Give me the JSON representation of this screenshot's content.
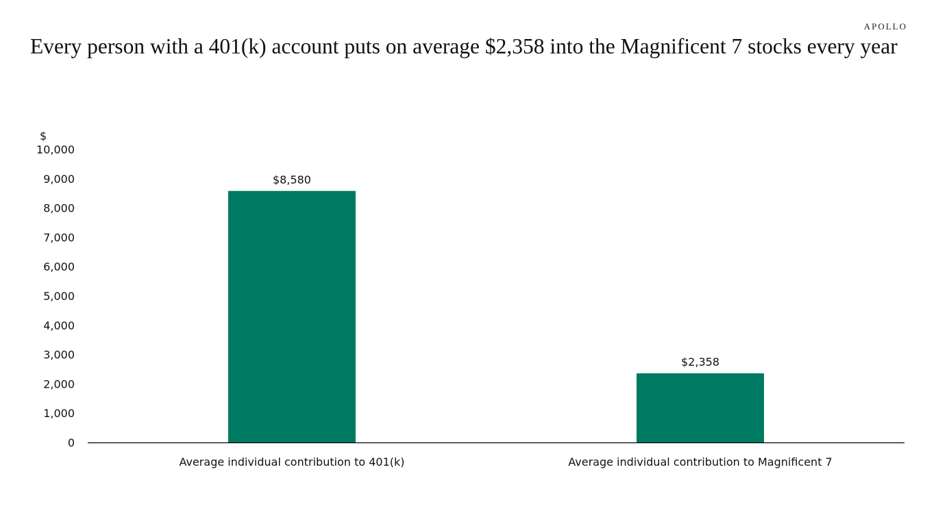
{
  "logo": "APOLLO",
  "title": "Every person with a 401(k) account puts on average $2,358 into the Magnificent 7 stocks every year",
  "chart_data": {
    "type": "bar",
    "title": "Every person with a 401(k) account puts on average $2,358 into the Magnificent 7 stocks every year",
    "categories": [
      "Average individual contribution to 401(k)",
      "Average individual contribution to Magnificent 7"
    ],
    "values": [
      8580,
      2358
    ],
    "data_labels": [
      "$8,580",
      "$2,358"
    ],
    "ylabel": "$",
    "xlabel": "",
    "ylim": [
      0,
      10000
    ],
    "yticks": [
      0,
      1000,
      2000,
      3000,
      4000,
      5000,
      6000,
      7000,
      8000,
      9000,
      10000
    ],
    "ytick_labels": [
      "0",
      "1,000",
      "2,000",
      "3,000",
      "4,000",
      "5,000",
      "6,000",
      "7,000",
      "8,000",
      "9,000",
      "10,000"
    ],
    "grid": false,
    "legend": "none",
    "bar_color": "#007B63"
  }
}
